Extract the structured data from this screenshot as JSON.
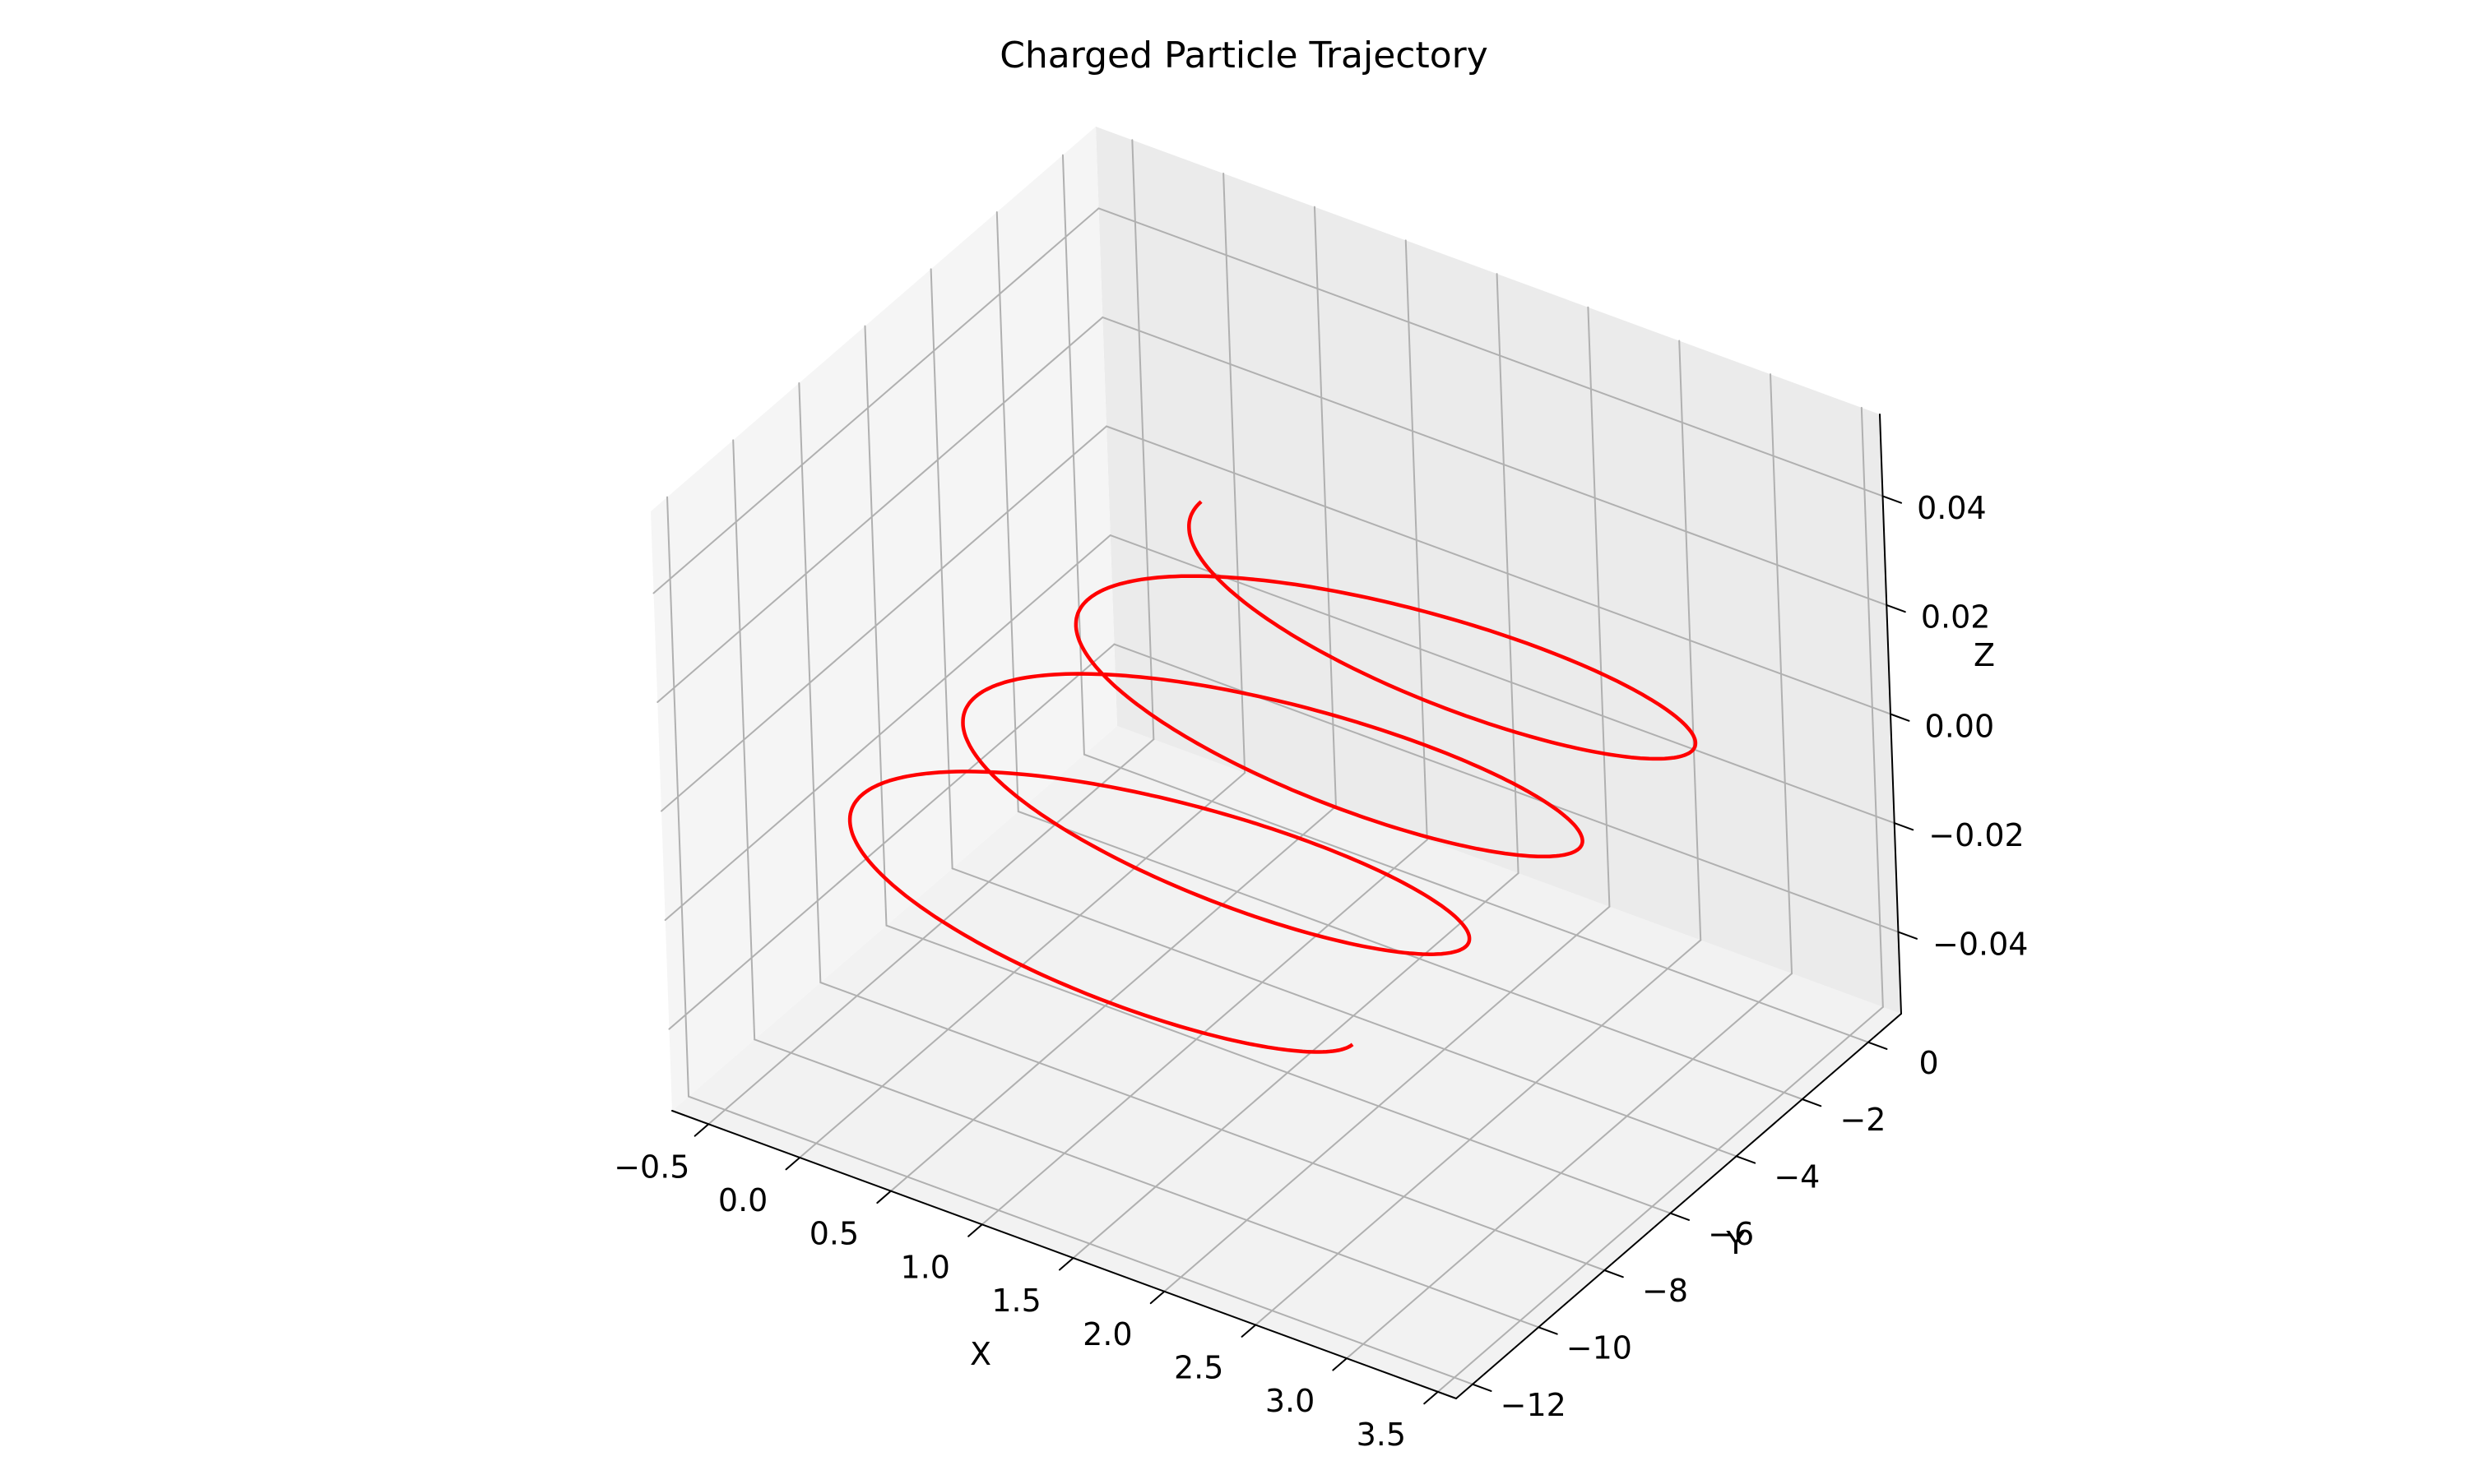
{
  "chart_data": {
    "type": "line3d",
    "title": "Charged Particle Trajectory",
    "xlabel": "X",
    "ylabel": "Y",
    "zlabel": "Z",
    "xlim": [
      -0.7,
      3.6
    ],
    "ylim": [
      -12.5,
      1.0
    ],
    "zlim": [
      -0.055,
      0.055
    ],
    "xticks": [
      -0.5,
      0.0,
      0.5,
      1.0,
      1.5,
      2.0,
      2.5,
      3.0,
      3.5
    ],
    "xtick_labels": [
      "−0.5",
      "0.0",
      "0.5",
      "1.0",
      "1.5",
      "2.0",
      "2.5",
      "3.0",
      "3.5"
    ],
    "yticks": [
      0,
      -2,
      -4,
      -6,
      -8,
      -10,
      -12
    ],
    "ytick_labels": [
      "0",
      "−2",
      "−4",
      "−6",
      "−8",
      "−10",
      "−12"
    ],
    "zticks": [
      0.04,
      0.02,
      0.0,
      -0.02,
      -0.04
    ],
    "ztick_labels": [
      "0.04",
      "0.02",
      "0.00",
      "−0.02",
      "−0.04"
    ],
    "grid": true,
    "series": [
      {
        "color": "#ff0000",
        "helix": {
          "center_x": 1.5,
          "radius": 1.5,
          "y_start": 0.0,
          "y_end": -12.0,
          "z": 0.0,
          "start_x": 0.0,
          "turns": 3.5,
          "samples": 800
        }
      }
    ]
  }
}
